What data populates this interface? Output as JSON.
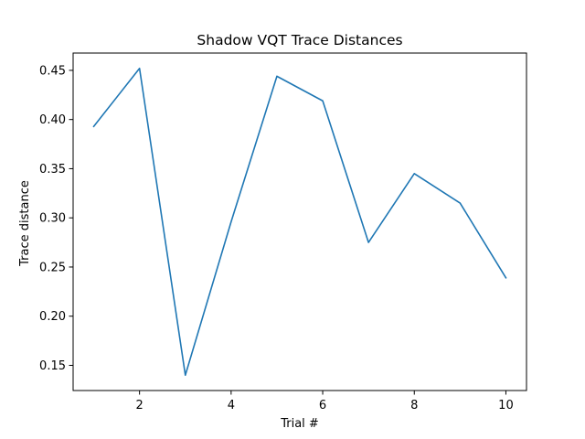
{
  "chart_data": {
    "type": "line",
    "title": "Shadow VQT Trace Distances",
    "xlabel": "Trial #",
    "ylabel": "Trace distance",
    "x": [
      1,
      2,
      3,
      4,
      5,
      6,
      7,
      8,
      9,
      10
    ],
    "series": [
      {
        "values": [
          0.393,
          0.452,
          0.14,
          0.296,
          0.444,
          0.419,
          0.275,
          0.345,
          0.315,
          0.239
        ],
        "color": "#1f77b4"
      }
    ],
    "xlim": [
      0.55,
      10.45
    ],
    "ylim": [
      0.1244,
      0.4676
    ],
    "xticks": [
      2,
      4,
      6,
      8,
      10
    ],
    "xtick_labels": [
      "2",
      "4",
      "6",
      "8",
      "10"
    ],
    "yticks": [
      0.15,
      0.2,
      0.25,
      0.3,
      0.35,
      0.4,
      0.45
    ],
    "ytick_labels": [
      "0.15",
      "0.20",
      "0.25",
      "0.30",
      "0.35",
      "0.40",
      "0.45"
    ],
    "grid": false,
    "legend": "none"
  }
}
